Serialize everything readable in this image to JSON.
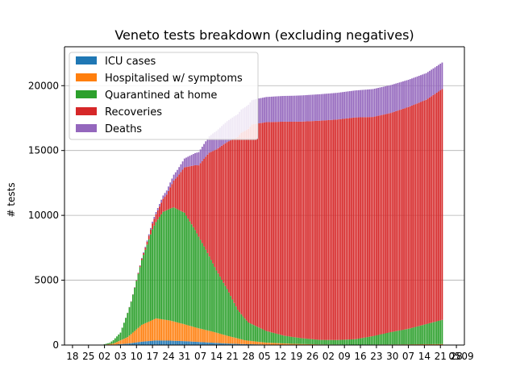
{
  "chart_data": {
    "type": "bar",
    "stacked": true,
    "title": "Veneto tests breakdown (excluding negatives)",
    "xlabel": "",
    "ylabel": "# tests",
    "ylim": [
      0,
      23000
    ],
    "xlim": [
      -13.5,
      211.5
    ],
    "y_ticks": [
      0,
      5000,
      10000,
      15000,
      20000
    ],
    "y_tick_labels": [
      "0",
      "5000",
      "10000",
      "15000",
      "20000"
    ],
    "x_tick_positions": [
      -9,
      0,
      9,
      18,
      27,
      36,
      45,
      54,
      63,
      72,
      81,
      90,
      99,
      108,
      117,
      126,
      135,
      144,
      153,
      162,
      171,
      180,
      189,
      198,
      207
    ],
    "x_tick_labels": [
      "18",
      "25",
      "02",
      "03",
      "10",
      "17",
      "24",
      "31",
      "07",
      "14",
      "21",
      "28",
      "05",
      "12",
      "19",
      "26",
      "02",
      "09",
      "16",
      "23",
      "30",
      "07",
      "14",
      "21",
      "28"
    ],
    "x_overflow_labels": [
      "05",
      "09"
    ],
    "grid": {
      "y": true,
      "x": false
    },
    "legend": {
      "position": "top-left",
      "entries": [
        "ICU cases",
        "Hospitalised w/ symptoms",
        "Quarantined at home",
        "Recoveries",
        "Deaths"
      ]
    },
    "bar_count": 200,
    "series": [
      {
        "name": "ICU cases",
        "color": "#1f77b4",
        "knots": [
          [
            0,
            0
          ],
          [
            8,
            3
          ],
          [
            14,
            30
          ],
          [
            22,
            110
          ],
          [
            30,
            260
          ],
          [
            38,
            355
          ],
          [
            46,
            340
          ],
          [
            54,
            300
          ],
          [
            62,
            240
          ],
          [
            70,
            180
          ],
          [
            78,
            120
          ],
          [
            88,
            70
          ],
          [
            100,
            35
          ],
          [
            115,
            15
          ],
          [
            130,
            8
          ],
          [
            150,
            5
          ],
          [
            170,
            8
          ],
          [
            200,
            15
          ]
        ]
      },
      {
        "name": "Hospitalised w/ symptoms",
        "color": "#ff7f0e",
        "knots": [
          [
            0,
            0
          ],
          [
            8,
            5
          ],
          [
            14,
            80
          ],
          [
            22,
            500
          ],
          [
            30,
            1300
          ],
          [
            38,
            1700
          ],
          [
            46,
            1550
          ],
          [
            54,
            1300
          ],
          [
            62,
            1050
          ],
          [
            70,
            850
          ],
          [
            78,
            600
          ],
          [
            88,
            300
          ],
          [
            100,
            150
          ],
          [
            115,
            80
          ],
          [
            130,
            40
          ],
          [
            150,
            25
          ],
          [
            170,
            35
          ],
          [
            200,
            60
          ]
        ]
      },
      {
        "name": "Quarantined at home",
        "color": "#2ca02c",
        "knots": [
          [
            0,
            0
          ],
          [
            8,
            20
          ],
          [
            12,
            100
          ],
          [
            18,
            600
          ],
          [
            24,
            2500
          ],
          [
            30,
            5000
          ],
          [
            36,
            7000
          ],
          [
            42,
            8300
          ],
          [
            48,
            8800
          ],
          [
            54,
            8600
          ],
          [
            60,
            7500
          ],
          [
            66,
            6200
          ],
          [
            72,
            4800
          ],
          [
            78,
            3600
          ],
          [
            84,
            2200
          ],
          [
            90,
            1400
          ],
          [
            100,
            900
          ],
          [
            110,
            600
          ],
          [
            120,
            450
          ],
          [
            130,
            350
          ],
          [
            140,
            350
          ],
          [
            150,
            420
          ],
          [
            160,
            650
          ],
          [
            170,
            950
          ],
          [
            180,
            1200
          ],
          [
            190,
            1550
          ],
          [
            200,
            1900
          ]
        ]
      },
      {
        "name": "Recoveries",
        "color": "#d62728",
        "knots": [
          [
            0,
            0
          ],
          [
            20,
            0
          ],
          [
            26,
            20
          ],
          [
            32,
            150
          ],
          [
            38,
            600
          ],
          [
            44,
            1200
          ],
          [
            50,
            2500
          ],
          [
            56,
            4000
          ],
          [
            62,
            5500
          ],
          [
            68,
            8000
          ],
          [
            74,
            10000
          ],
          [
            80,
            12000
          ],
          [
            86,
            14000
          ],
          [
            92,
            15400
          ],
          [
            100,
            16100
          ],
          [
            110,
            16500
          ],
          [
            120,
            16700
          ],
          [
            130,
            16900
          ],
          [
            140,
            17000
          ],
          [
            150,
            17100
          ],
          [
            160,
            16900
          ],
          [
            170,
            16900
          ],
          [
            180,
            17100
          ],
          [
            190,
            17300
          ],
          [
            200,
            17850
          ]
        ]
      },
      {
        "name": "Deaths",
        "color": "#9467bd",
        "knots": [
          [
            0,
            0
          ],
          [
            16,
            0
          ],
          [
            22,
            8
          ],
          [
            28,
            30
          ],
          [
            34,
            100
          ],
          [
            40,
            200
          ],
          [
            46,
            380
          ],
          [
            52,
            600
          ],
          [
            58,
            850
          ],
          [
            64,
            1100
          ],
          [
            70,
            1350
          ],
          [
            76,
            1550
          ],
          [
            82,
            1720
          ],
          [
            88,
            1830
          ],
          [
            96,
            1920
          ],
          [
            106,
            1970
          ],
          [
            120,
            2020
          ],
          [
            140,
            2060
          ],
          [
            150,
            2080
          ],
          [
            160,
            2150
          ],
          [
            170,
            2150
          ],
          [
            180,
            2100
          ],
          [
            190,
            2050
          ],
          [
            200,
            2050
          ]
        ]
      }
    ]
  }
}
